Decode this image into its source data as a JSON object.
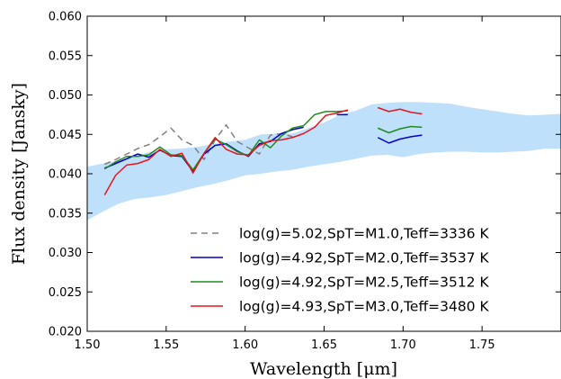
{
  "chart_data": {
    "type": "line",
    "xlabel": "Wavelength [μm]",
    "ylabel": "Flux density [Jansky]",
    "xlim": [
      1.5,
      1.8
    ],
    "ylim": [
      0.02,
      0.06
    ],
    "x_ticks": [
      "1.50",
      "1.55",
      "1.60",
      "1.65",
      "1.70",
      "1.75"
    ],
    "x_tick_values": [
      1.5,
      1.55,
      1.6,
      1.65,
      1.7,
      1.75
    ],
    "y_ticks": [
      "0.020",
      "0.025",
      "0.030",
      "0.035",
      "0.040",
      "0.045",
      "0.050",
      "0.055",
      "0.060"
    ],
    "y_tick_values": [
      0.02,
      0.025,
      0.03,
      0.035,
      0.04,
      0.045,
      0.05,
      0.055,
      0.06
    ],
    "legend_position": "lower-right",
    "band": {
      "color": "#bfe0fb",
      "x": [
        1.5,
        1.51,
        1.52,
        1.53,
        1.54,
        1.55,
        1.56,
        1.57,
        1.58,
        1.59,
        1.6,
        1.61,
        1.62,
        1.63,
        1.64,
        1.65,
        1.66,
        1.67,
        1.68,
        1.69,
        1.7,
        1.71,
        1.72,
        1.73,
        1.74,
        1.75,
        1.76,
        1.77,
        1.78,
        1.79,
        1.8
      ],
      "lower": [
        0.0341,
        0.0352,
        0.0362,
        0.0368,
        0.037,
        0.0373,
        0.0378,
        0.0383,
        0.0387,
        0.0392,
        0.0398,
        0.04,
        0.0403,
        0.0405,
        0.0409,
        0.0412,
        0.0415,
        0.0419,
        0.0423,
        0.0424,
        0.0421,
        0.0425,
        0.0427,
        0.0428,
        0.0428,
        0.0427,
        0.0427,
        0.0428,
        0.0429,
        0.0432,
        0.0432
      ],
      "upper": [
        0.0409,
        0.0413,
        0.0417,
        0.0422,
        0.0428,
        0.0431,
        0.0432,
        0.0434,
        0.0438,
        0.0441,
        0.0443,
        0.045,
        0.0451,
        0.0451,
        0.0458,
        0.0465,
        0.0475,
        0.048,
        0.0488,
        0.049,
        0.0491,
        0.0491,
        0.049,
        0.0489,
        0.0485,
        0.0482,
        0.0479,
        0.0476,
        0.0474,
        0.0475,
        0.0476
      ]
    },
    "series": [
      {
        "name": "log(g)=5.02,SpT=M1.0,Teff=3336 K",
        "color": "#808080",
        "dash": "dashed",
        "segments": [
          {
            "x": [
              1.511,
              1.518,
              1.525,
              1.532,
              1.539,
              1.546,
              1.553,
              1.56,
              1.567,
              1.574,
              1.581,
              1.588,
              1.595,
              1.602,
              1.609,
              1.616,
              1.623,
              1.63
            ],
            "y": [
              0.0412,
              0.0418,
              0.0425,
              0.0432,
              0.0437,
              0.0447,
              0.0458,
              0.0443,
              0.0436,
              0.0418,
              0.0443,
              0.0462,
              0.0441,
              0.0433,
              0.0425,
              0.0449,
              0.0451,
              0.0447
            ]
          }
        ]
      },
      {
        "name": "log(g)=4.92,SpT=M2.0,Teff=3537 K",
        "color": "#0000cc",
        "dash": "solid",
        "segments": [
          {
            "x": [
              1.511,
              1.518,
              1.525,
              1.532,
              1.539,
              1.546,
              1.553,
              1.56,
              1.567,
              1.574,
              1.581,
              1.588,
              1.595,
              1.602,
              1.609,
              1.616,
              1.623,
              1.63,
              1.637
            ],
            "y": [
              0.0407,
              0.0413,
              0.0419,
              0.0425,
              0.0421,
              0.043,
              0.0423,
              0.0422,
              0.0403,
              0.0425,
              0.0436,
              0.0438,
              0.0429,
              0.0422,
              0.0438,
              0.0441,
              0.0451,
              0.0456,
              0.0459
            ]
          },
          {
            "x": [
              1.658,
              1.665
            ],
            "y": [
              0.0475,
              0.0475
            ]
          },
          {
            "x": [
              1.684,
              1.691,
              1.698,
              1.705,
              1.712
            ],
            "y": [
              0.0446,
              0.0439,
              0.0444,
              0.0447,
              0.0449
            ]
          }
        ]
      },
      {
        "name": "log(g)=4.92,SpT=M2.5,Teff=3512 K",
        "color": "#228b22",
        "dash": "solid",
        "segments": [
          {
            "x": [
              1.511,
              1.518,
              1.525,
              1.532,
              1.539,
              1.546,
              1.553,
              1.56,
              1.567,
              1.574,
              1.581,
              1.588,
              1.595,
              1.602,
              1.609,
              1.616,
              1.623,
              1.63,
              1.637,
              1.644,
              1.651,
              1.658,
              1.665
            ],
            "y": [
              0.0406,
              0.0415,
              0.0422,
              0.0422,
              0.0424,
              0.0434,
              0.0424,
              0.0423,
              0.0405,
              0.0426,
              0.0444,
              0.0437,
              0.0428,
              0.0423,
              0.0443,
              0.0433,
              0.0448,
              0.0458,
              0.0461,
              0.0475,
              0.0479,
              0.0479,
              0.048
            ]
          },
          {
            "x": [
              1.684,
              1.691,
              1.698,
              1.705,
              1.712
            ],
            "y": [
              0.0458,
              0.0452,
              0.0457,
              0.046,
              0.0459
            ]
          }
        ]
      },
      {
        "name": "log(g)=4.93,SpT=M3.0,Teff=3480 K",
        "color": "#e8141c",
        "dash": "solid",
        "segments": [
          {
            "x": [
              1.511,
              1.518,
              1.525,
              1.532,
              1.539,
              1.546,
              1.553,
              1.56,
              1.567,
              1.574,
              1.581,
              1.588,
              1.595,
              1.602,
              1.609,
              1.616,
              1.623,
              1.63,
              1.637,
              1.644,
              1.651,
              1.658,
              1.665
            ],
            "y": [
              0.0373,
              0.0398,
              0.0411,
              0.0413,
              0.0418,
              0.0431,
              0.0422,
              0.0426,
              0.0401,
              0.0426,
              0.0446,
              0.0431,
              0.0425,
              0.0424,
              0.0436,
              0.0442,
              0.0443,
              0.0446,
              0.0451,
              0.0459,
              0.0474,
              0.0477,
              0.0481
            ]
          },
          {
            "x": [
              1.684,
              1.691,
              1.698,
              1.705,
              1.712
            ],
            "y": [
              0.0484,
              0.0479,
              0.0482,
              0.0478,
              0.0476
            ]
          }
        ]
      }
    ]
  }
}
